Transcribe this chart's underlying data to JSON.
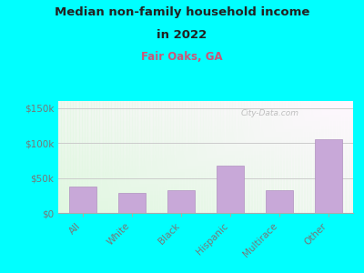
{
  "title_line1": "Median non-family household income",
  "title_line2": "in 2022",
  "subtitle": "Fair Oaks, GA",
  "categories": [
    "All",
    "White",
    "Black",
    "Hispanic",
    "Multirace",
    "Other"
  ],
  "values": [
    38000,
    29000,
    32000,
    68000,
    33000,
    105000
  ],
  "bar_color": "#C8A8D8",
  "bar_edge_color": "#B090C0",
  "background_outer": "#00FFFF",
  "title_color": "#222222",
  "subtitle_color": "#cc5577",
  "tick_label_color": "#777777",
  "grid_color": "#cccccc",
  "watermark": "City-Data.com",
  "ylim": [
    0,
    160000
  ],
  "yticks": [
    0,
    50000,
    100000,
    150000
  ],
  "ytick_labels": [
    "$0",
    "$50k",
    "$100k",
    "$150k"
  ],
  "title_fontsize": 9.5,
  "subtitle_fontsize": 8.5,
  "tick_fontsize": 7.5
}
